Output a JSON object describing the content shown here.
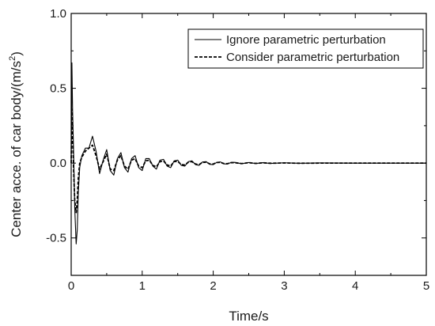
{
  "chart_data": {
    "type": "line",
    "title": "",
    "xlabel": "Time/s",
    "ylabel": "Center acce. of car body/(m/s",
    "ylabel_superscript": "2",
    "ylabel_suffix": ")",
    "xlim": [
      0,
      5
    ],
    "ylim": [
      -0.75,
      1.0
    ],
    "xticks": [
      0,
      1,
      2,
      3,
      4,
      5
    ],
    "xtick_labels": [
      "0",
      "1",
      "2",
      "3",
      "4",
      "5"
    ],
    "yticks": [
      -0.5,
      0.0,
      0.5,
      1.0
    ],
    "ytick_labels": [
      "-0.5",
      "0.0",
      "0.5",
      "1.0"
    ],
    "grid": false,
    "legend_position": "top-right",
    "series": [
      {
        "name": "Ignore parametric perturbation",
        "style": "solid",
        "color": "#000000",
        "x": [
          0,
          0.01,
          0.02,
          0.035,
          0.05,
          0.07,
          0.085,
          0.1,
          0.12,
          0.15,
          0.2,
          0.25,
          0.3,
          0.35,
          0.4,
          0.45,
          0.5,
          0.55,
          0.6,
          0.65,
          0.7,
          0.75,
          0.8,
          0.85,
          0.9,
          0.95,
          1.0,
          1.05,
          1.1,
          1.15,
          1.2,
          1.25,
          1.3,
          1.35,
          1.4,
          1.45,
          1.5,
          1.55,
          1.6,
          1.65,
          1.7,
          1.75,
          1.8,
          1.85,
          1.9,
          1.95,
          2.0,
          2.05,
          2.1,
          2.15,
          2.2,
          2.25,
          2.3,
          2.4,
          2.5,
          2.6,
          2.7,
          2.8,
          3.0,
          3.2,
          3.5,
          4.0,
          4.5,
          5.0
        ],
        "y": [
          0.0,
          0.67,
          0.35,
          0.05,
          -0.3,
          -0.54,
          -0.45,
          -0.2,
          -0.03,
          0.05,
          0.1,
          0.1,
          0.18,
          0.08,
          -0.07,
          0.02,
          0.09,
          -0.05,
          -0.08,
          0.03,
          0.07,
          -0.03,
          -0.06,
          0.03,
          0.05,
          -0.03,
          -0.05,
          0.03,
          0.03,
          -0.02,
          -0.04,
          0.02,
          0.025,
          -0.02,
          -0.03,
          0.015,
          0.02,
          -0.015,
          -0.02,
          0.01,
          0.015,
          -0.01,
          -0.015,
          0.008,
          0.01,
          -0.008,
          -0.01,
          0.005,
          0.008,
          -0.005,
          -0.006,
          0.004,
          0.005,
          -0.004,
          0.004,
          -0.003,
          0.003,
          -0.002,
          0.002,
          -0.001,
          0.001,
          0.0,
          0.0,
          0.0
        ]
      },
      {
        "name": "Consider parametric perturbation",
        "style": "dashed",
        "color": "#000000",
        "x": [
          0,
          0.01,
          0.02,
          0.035,
          0.05,
          0.07,
          0.085,
          0.1,
          0.12,
          0.15,
          0.2,
          0.25,
          0.3,
          0.35,
          0.4,
          0.45,
          0.5,
          0.55,
          0.6,
          0.65,
          0.7,
          0.75,
          0.8,
          0.85,
          0.9,
          0.95,
          1.0,
          1.05,
          1.1,
          1.15,
          1.2,
          1.25,
          1.3,
          1.35,
          1.4,
          1.45,
          1.5,
          1.55,
          1.6,
          1.65,
          1.7,
          1.75,
          1.8,
          1.85,
          1.9,
          1.95,
          2.0,
          2.05,
          2.1,
          2.15,
          2.2,
          2.25,
          2.3,
          2.4,
          2.5,
          2.6,
          2.7,
          2.8,
          3.0,
          3.2,
          3.5,
          4.0,
          4.5,
          5.0
        ],
        "y": [
          0.0,
          0.36,
          0.2,
          -0.05,
          -0.25,
          -0.33,
          -0.25,
          -0.1,
          0.0,
          0.04,
          0.08,
          0.1,
          0.12,
          0.05,
          -0.04,
          0.01,
          0.06,
          -0.04,
          -0.05,
          0.02,
          0.05,
          -0.02,
          -0.04,
          0.02,
          0.03,
          -0.02,
          -0.03,
          0.015,
          0.02,
          -0.015,
          -0.025,
          0.01,
          0.015,
          -0.012,
          -0.02,
          0.01,
          0.012,
          -0.01,
          -0.012,
          0.006,
          0.01,
          -0.006,
          -0.01,
          0.005,
          0.006,
          -0.005,
          -0.006,
          0.004,
          0.005,
          -0.003,
          -0.004,
          0.003,
          0.003,
          -0.003,
          0.003,
          -0.002,
          0.002,
          -0.001,
          0.001,
          -0.001,
          0.0,
          0.0,
          0.0,
          0.0
        ]
      }
    ]
  }
}
